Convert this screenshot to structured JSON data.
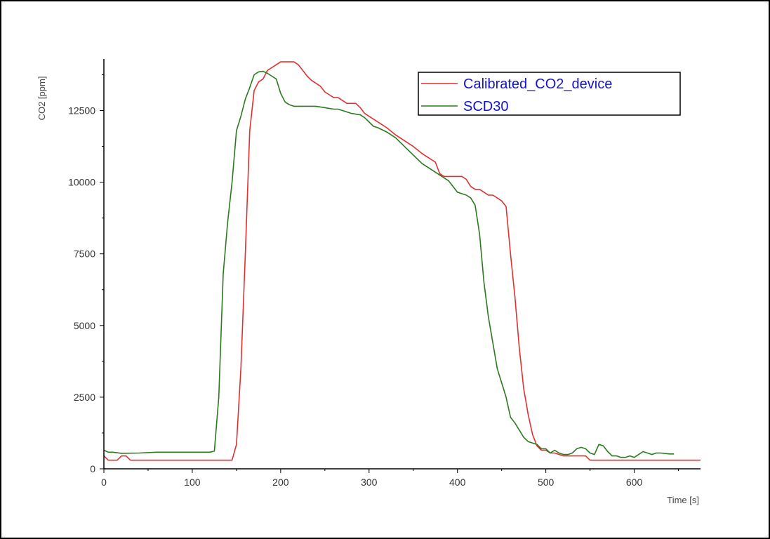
{
  "chart_data": {
    "type": "line",
    "title": "",
    "xlabel": "Time [s]",
    "ylabel": "CO2 [ppm]",
    "xlim": [
      0,
      675
    ],
    "ylim": [
      0,
      14300
    ],
    "xticks": [
      0,
      100,
      200,
      300,
      400,
      500,
      600
    ],
    "yticks": [
      0,
      2500,
      5000,
      7500,
      10000,
      12500
    ],
    "grid": false,
    "legend_position": "top-right",
    "series": [
      {
        "name": "Calibrated_CO2_device",
        "color": "#e03030",
        "x": [
          0,
          5,
          15,
          20,
          25,
          30,
          100,
          145,
          150,
          155,
          160,
          165,
          170,
          175,
          180,
          185,
          190,
          195,
          200,
          205,
          210,
          215,
          220,
          225,
          230,
          235,
          240,
          245,
          250,
          255,
          260,
          265,
          270,
          275,
          280,
          285,
          290,
          295,
          300,
          310,
          320,
          330,
          340,
          350,
          360,
          370,
          375,
          380,
          385,
          390,
          395,
          400,
          405,
          410,
          415,
          420,
          425,
          430,
          435,
          440,
          445,
          450,
          455,
          460,
          465,
          470,
          475,
          480,
          485,
          490,
          495,
          500,
          505,
          510,
          520,
          530,
          540,
          545,
          550,
          600,
          675
        ],
        "y": [
          450,
          300,
          300,
          450,
          450,
          300,
          300,
          300,
          850,
          3500,
          7500,
          11800,
          13200,
          13500,
          13600,
          13900,
          14000,
          14100,
          14200,
          14200,
          14200,
          14200,
          14100,
          13900,
          13700,
          13550,
          13450,
          13350,
          13150,
          13050,
          12950,
          12950,
          12850,
          12750,
          12750,
          12750,
          12600,
          12400,
          12300,
          12100,
          11900,
          11650,
          11450,
          11250,
          11000,
          10800,
          10700,
          10300,
          10200,
          10200,
          10200,
          10200,
          10200,
          10100,
          9850,
          9750,
          9750,
          9650,
          9550,
          9550,
          9450,
          9350,
          9150,
          7500,
          6000,
          4200,
          2800,
          1900,
          1200,
          800,
          650,
          650,
          550,
          550,
          450,
          450,
          450,
          450,
          300,
          300,
          300
        ]
      },
      {
        "name": "SCD30",
        "color": "#2a7a1e",
        "x": [
          0,
          5,
          10,
          20,
          40,
          60,
          80,
          100,
          120,
          125,
          130,
          135,
          140,
          145,
          150,
          155,
          160,
          165,
          170,
          175,
          180,
          185,
          190,
          195,
          200,
          205,
          210,
          215,
          220,
          230,
          240,
          250,
          260,
          265,
          270,
          280,
          290,
          295,
          300,
          305,
          310,
          320,
          330,
          340,
          350,
          360,
          370,
          380,
          390,
          395,
          400,
          410,
          415,
          420,
          425,
          430,
          435,
          440,
          445,
          450,
          455,
          460,
          465,
          470,
          475,
          480,
          485,
          490,
          495,
          500,
          505,
          510,
          515,
          520,
          525,
          530,
          535,
          540,
          545,
          550,
          555,
          560,
          565,
          570,
          575,
          580,
          585,
          590,
          595,
          600,
          605,
          610,
          615,
          620,
          625,
          630,
          640,
          645
        ],
        "y": [
          650,
          580,
          580,
          540,
          550,
          580,
          580,
          580,
          580,
          620,
          2500,
          6800,
          8600,
          10000,
          11800,
          12300,
          12900,
          13300,
          13750,
          13850,
          13870,
          13800,
          13700,
          13600,
          13100,
          12800,
          12700,
          12650,
          12650,
          12650,
          12650,
          12600,
          12550,
          12550,
          12500,
          12400,
          12350,
          12250,
          12100,
          11950,
          11900,
          11750,
          11550,
          11250,
          10950,
          10650,
          10450,
          10250,
          10050,
          9850,
          9650,
          9550,
          9450,
          9200,
          8200,
          6500,
          5300,
          4400,
          3500,
          3000,
          2500,
          1800,
          1600,
          1350,
          1100,
          950,
          900,
          850,
          700,
          700,
          550,
          650,
          550,
          500,
          500,
          550,
          700,
          750,
          700,
          550,
          500,
          850,
          800,
          600,
          450,
          450,
          400,
          400,
          450,
          400,
          500,
          600,
          550,
          500,
          550,
          550,
          520,
          520
        ]
      }
    ]
  }
}
